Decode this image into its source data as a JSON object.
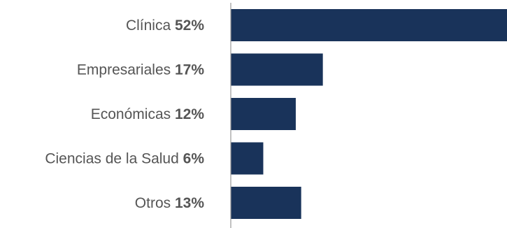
{
  "chart_data": {
    "type": "bar",
    "orientation": "horizontal",
    "categories": [
      "Clínica",
      "Empresariales",
      "Económicas",
      "Ciencias de la Salud",
      "Otros"
    ],
    "values": [
      52,
      17,
      12,
      6,
      13
    ],
    "value_labels": [
      "52%",
      "17%",
      "12%",
      "6%",
      "13%"
    ],
    "unit": "%",
    "title": "",
    "xlabel": "",
    "ylabel": "",
    "xlim": [
      0,
      51
    ],
    "grid": false,
    "legend": "none",
    "colors": {
      "bar": "#19335a",
      "axis": "#9a9a9a",
      "label": "#555555"
    }
  }
}
